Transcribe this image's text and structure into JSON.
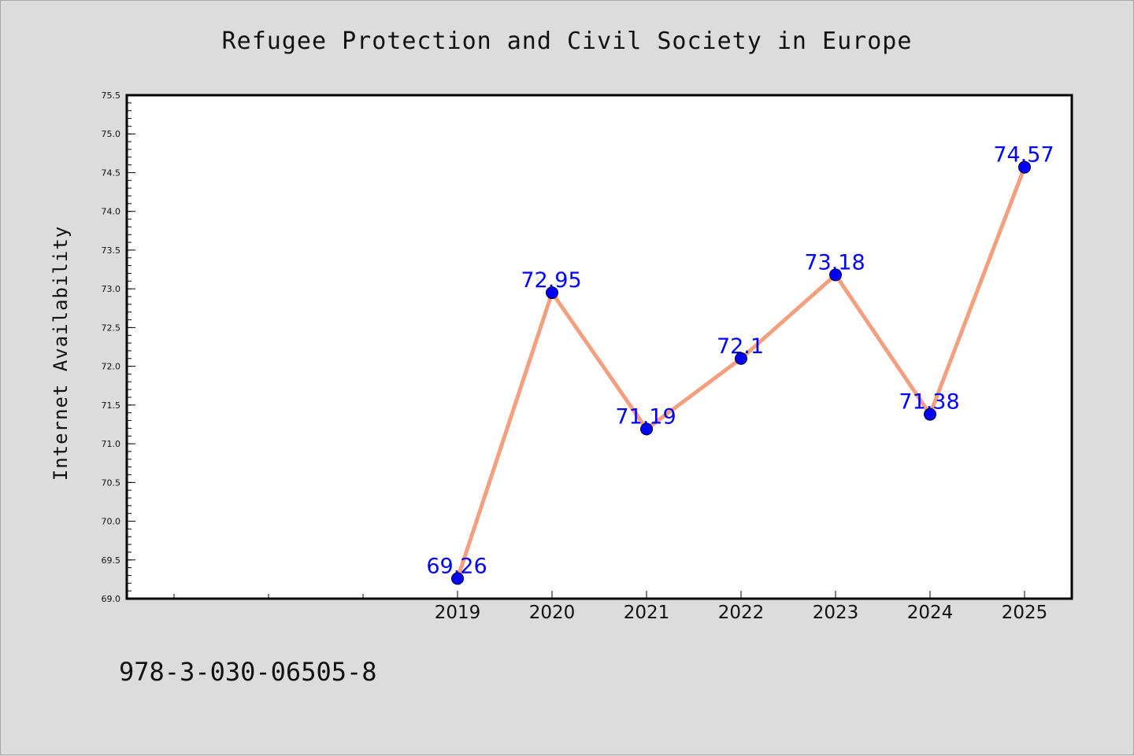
{
  "chart_data": {
    "type": "line",
    "title": "Refugee Protection and Civil Society in Europe",
    "xlabel": "",
    "ylabel": "Internet Availability",
    "categories": [
      "2019",
      "2020",
      "2021",
      "2022",
      "2023",
      "2024",
      "2025"
    ],
    "series": [
      {
        "values": [
          69.26,
          72.95,
          71.19,
          72.1,
          73.18,
          71.38,
          74.57
        ]
      }
    ],
    "data_labels": [
      "69.26",
      "72.95",
      "71.19",
      "72.1",
      "73.18",
      "71.38",
      "74.57"
    ],
    "ylim": [
      69.0,
      75.5
    ],
    "yticks": [
      "69.0",
      "69.5",
      "70.0",
      "70.5",
      "71.0",
      "71.5",
      "72.0",
      "72.5",
      "73.0",
      "73.5",
      "74.0",
      "74.5",
      "75.0",
      "75.5"
    ],
    "grid": false,
    "colors": {
      "line": "#f4a07e",
      "marker": "#0000ff",
      "label": "#0000ff",
      "background": "#dcdcdc",
      "plot_area": "#ffffff"
    }
  },
  "footer": {
    "isbn": "978-3-030-06505-8"
  }
}
